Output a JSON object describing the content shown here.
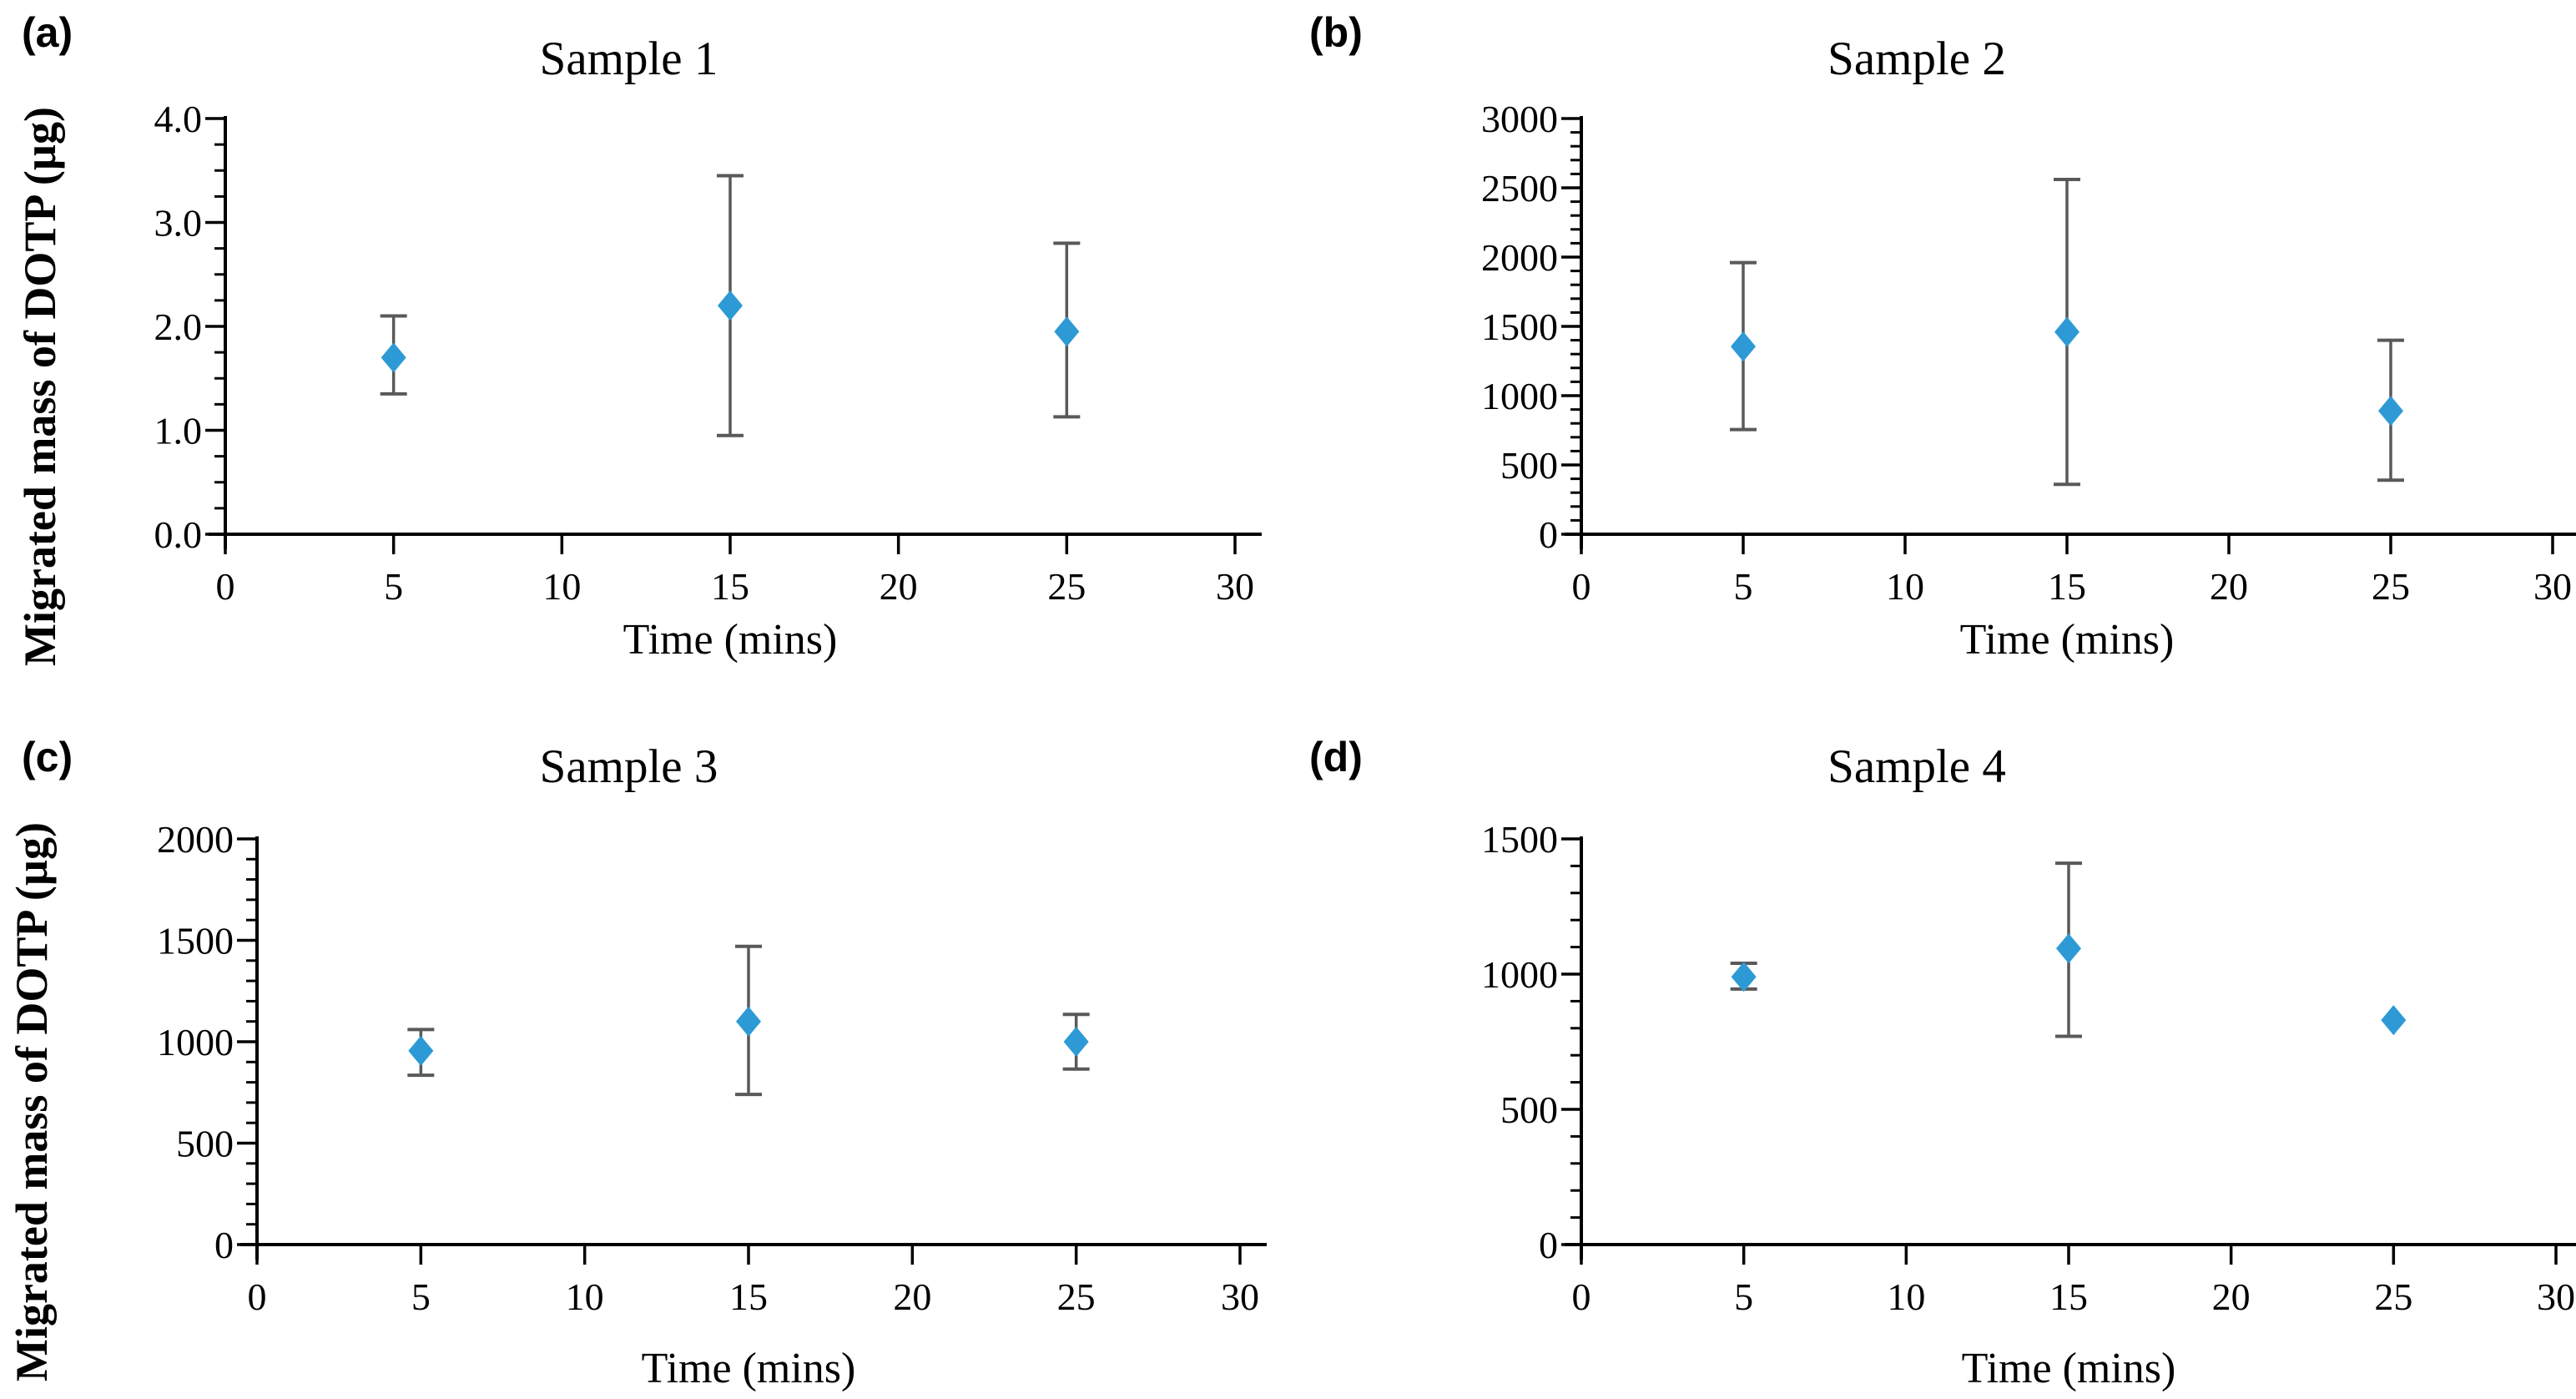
{
  "figure": {
    "background_color": "#ffffff",
    "marker_color": "#2d9ad5",
    "error_bar_color": "#595959",
    "axis_color": "#000000",
    "text_color": "#000000",
    "marker_shape": "diamond",
    "y_axis_title": "Migrated mass of DOTP (µg)",
    "x_axis_title": "Time (mins)"
  },
  "chart_data": [
    {
      "type": "scatter",
      "panel_label": "(a)",
      "title": "Sample 1",
      "xlabel": "Time (mins)",
      "ylabel": "Migrated mass of DOTP (µg)",
      "x": [
        5,
        15,
        25
      ],
      "y": [
        1.7,
        2.2,
        1.95
      ],
      "err_low": [
        1.35,
        0.95,
        1.13
      ],
      "err_high": [
        2.1,
        3.45,
        2.8
      ],
      "xlim": [
        0,
        30
      ],
      "ylim": [
        0,
        4
      ],
      "xticks": [
        0,
        5,
        10,
        15,
        20,
        25,
        30
      ],
      "ytick_values": [
        0,
        1,
        2,
        3,
        4
      ],
      "ytick_labels": [
        "0.0",
        "1.0",
        "2.0",
        "3.0",
        "4.0"
      ],
      "y_minor_step": 0.25,
      "grid": false,
      "legend": "none"
    },
    {
      "type": "scatter",
      "panel_label": "(b)",
      "title": "Sample 2",
      "xlabel": "Time (mins)",
      "ylabel": "",
      "x": [
        5,
        15,
        25
      ],
      "y": [
        1355,
        1460,
        890
      ],
      "err_low": [
        755,
        360,
        390
      ],
      "err_high": [
        1960,
        2560,
        1400
      ],
      "xlim": [
        0,
        30
      ],
      "ylim": [
        0,
        3000
      ],
      "xticks": [
        0,
        5,
        10,
        15,
        20,
        25,
        30
      ],
      "ytick_values": [
        0,
        500,
        1000,
        1500,
        2000,
        2500,
        3000
      ],
      "ytick_labels": [
        "0",
        "500",
        "1000",
        "1500",
        "2000",
        "2500",
        "3000"
      ],
      "y_minor_step": 100,
      "grid": false,
      "legend": "none"
    },
    {
      "type": "scatter",
      "panel_label": "(c)",
      "title": "Sample 3",
      "xlabel": "Time (mins)",
      "ylabel": "Migrated mass of DOTP (µg)",
      "x": [
        5,
        15,
        25
      ],
      "y": [
        955,
        1100,
        1000
      ],
      "err_low": [
        835,
        740,
        865
      ],
      "err_high": [
        1060,
        1470,
        1135
      ],
      "xlim": [
        0,
        30
      ],
      "ylim": [
        0,
        2000
      ],
      "xticks": [
        0,
        5,
        10,
        15,
        20,
        25,
        30
      ],
      "ytick_values": [
        0,
        500,
        1000,
        1500,
        2000
      ],
      "ytick_labels": [
        "0",
        "500",
        "1000",
        "1500",
        "2000"
      ],
      "y_minor_step": 100,
      "grid": false,
      "legend": "none"
    },
    {
      "type": "scatter",
      "panel_label": "(d)",
      "title": "Sample 4",
      "xlabel": "Time (mins)",
      "ylabel": "",
      "x": [
        5,
        15,
        25
      ],
      "y": [
        990,
        1095,
        830
      ],
      "err_low": [
        945,
        770,
        830
      ],
      "err_high": [
        1040,
        1410,
        830
      ],
      "xlim": [
        0,
        30
      ],
      "ylim": [
        0,
        1500
      ],
      "xticks": [
        0,
        5,
        10,
        15,
        20,
        25,
        30
      ],
      "ytick_values": [
        0,
        500,
        1000,
        1500
      ],
      "ytick_labels": [
        "0",
        "500",
        "1000",
        "1500"
      ],
      "y_minor_step": 100,
      "grid": false,
      "legend": "none"
    }
  ]
}
